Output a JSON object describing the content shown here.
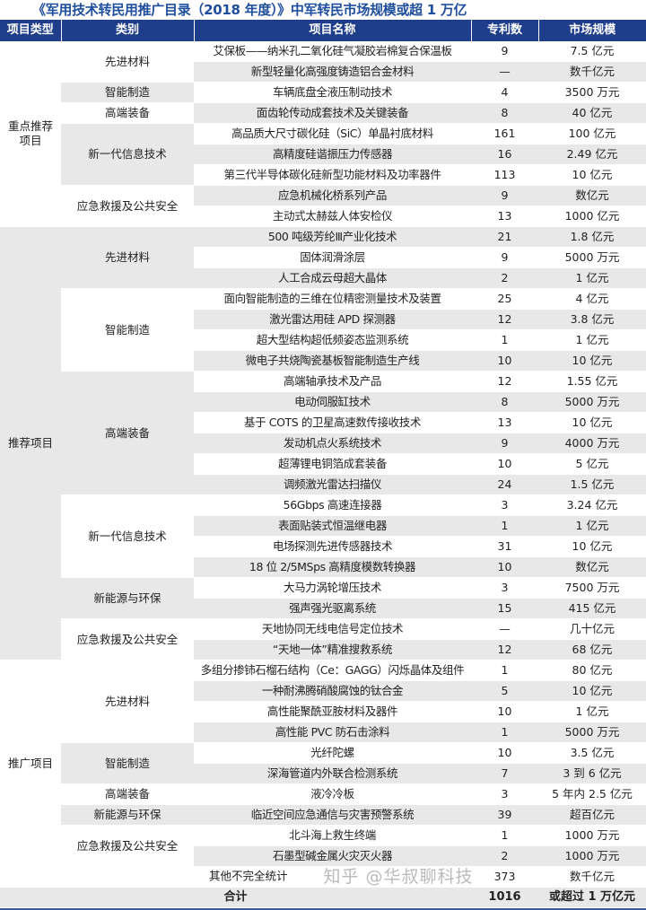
{
  "title": "《军用技术转民用推广目录（2018 年度）》中军转民市场规模或超 1 万亿",
  "headers": [
    "项目类型",
    "类别",
    "项目名称",
    "专利数",
    "市场规模"
  ],
  "sections": [
    {
      "type": "重点推荐项目",
      "groups": [
        {
          "category": "先进材料",
          "items": [
            {
              "name": "艾保板——纳米孔二氧化硅气凝胶岩棉复合保温板",
              "patents": "9",
              "market": "7.5 亿元"
            },
            {
              "name": "新型轻量化高强度铸造铝合金材料",
              "patents": "—",
              "market": "数千亿元"
            }
          ]
        },
        {
          "category": "智能制造",
          "items": [
            {
              "name": "车辆底盘全液压制动技术",
              "patents": "4",
              "market": "3500 万元"
            }
          ]
        },
        {
          "category": "高端装备",
          "items": [
            {
              "name": "面齿轮传动成套技术及关键装备",
              "patents": "8",
              "market": "40 亿元"
            }
          ]
        },
        {
          "category": "新一代信息技术",
          "items": [
            {
              "name": "高品质大尺寸碳化硅（SiC）单晶衬底材料",
              "patents": "161",
              "market": "100 亿元"
            },
            {
              "name": "高精度硅谐振压力传感器",
              "patents": "16",
              "market": "2.49 亿元"
            },
            {
              "name": "第三代半导体碳化硅新型功能材料及功率器件",
              "patents": "113",
              "market": "10 亿元"
            }
          ]
        },
        {
          "category": "应急救援及公共安全",
          "items": [
            {
              "name": "应急机械化桥系列产品",
              "patents": "9",
              "market": "数亿元"
            },
            {
              "name": "主动式太赫兹人体安检仪",
              "patents": "13",
              "market": "1000 亿元"
            }
          ]
        }
      ]
    },
    {
      "type": "推荐项目",
      "groups": [
        {
          "category": "先进材料",
          "items": [
            {
              "name": "500 吨级芳纶Ⅲ产业化技术",
              "patents": "21",
              "market": "1.8 亿元"
            },
            {
              "name": "固体润滑涂层",
              "patents": "9",
              "market": "5000 万元"
            },
            {
              "name": "人工合成云母超大晶体",
              "patents": "2",
              "market": "1 亿元"
            }
          ]
        },
        {
          "category": "智能制造",
          "items": [
            {
              "name": "面向智能制造的三维在位精密测量技术及装置",
              "patents": "25",
              "market": "4 亿元"
            },
            {
              "name": "激光雷达用硅 APD 探测器",
              "patents": "12",
              "market": "3.8 亿元"
            },
            {
              "name": "超大型结构超低频姿态监测系统",
              "patents": "1",
              "market": "1 亿元"
            },
            {
              "name": "微电子共烧陶瓷基板智能制造生产线",
              "patents": "10",
              "market": "10 亿元"
            }
          ]
        },
        {
          "category": "高端装备",
          "items": [
            {
              "name": "高端轴承技术及产品",
              "patents": "12",
              "market": "1.55 亿元"
            },
            {
              "name": "电动伺服缸技术",
              "patents": "8",
              "market": "5000 万元"
            },
            {
              "name": "基于 COTS 的卫星高速数传接收技术",
              "patents": "13",
              "market": "10 亿元"
            },
            {
              "name": "发动机点火系统技术",
              "patents": "9",
              "market": "4000 万元"
            },
            {
              "name": "超薄锂电铜箔成套装备",
              "patents": "10",
              "market": "5 亿元"
            },
            {
              "name": "调频激光雷达扫描仪",
              "patents": "24",
              "market": "1.5 亿元"
            }
          ]
        },
        {
          "category": "新一代信息技术",
          "items": [
            {
              "name": "56Gbps 高速连接器",
              "patents": "3",
              "market": "3.24 亿元"
            },
            {
              "name": "表面贴装式恒温继电器",
              "patents": "1",
              "market": "1 亿元"
            },
            {
              "name": "电场探测先进传感器技术",
              "patents": "31",
              "market": "10 亿元"
            },
            {
              "name": "18 位 2/5MSps 高精度模数转换器",
              "patents": "10",
              "market": "数亿元"
            }
          ]
        },
        {
          "category": "新能源与环保",
          "items": [
            {
              "name": "大马力涡轮增压技术",
              "patents": "3",
              "market": "7500 万元"
            },
            {
              "name": "强声强光驱离系统",
              "patents": "15",
              "market": "415 亿元"
            }
          ]
        },
        {
          "category": "应急救援及公共安全",
          "items": [
            {
              "name": "天地协同无线电信号定位技术",
              "patents": "—",
              "market": "几十亿元"
            },
            {
              "name": "“天地一体”精准搜救系统",
              "patents": "12",
              "market": "68 亿元"
            }
          ]
        }
      ]
    },
    {
      "type": "推广项目",
      "groups": [
        {
          "category": "先进材料",
          "items": [
            {
              "name": "多组分掺铈石榴石结构（Ce：GAGG）闪烁晶体及组件",
              "patents": "1",
              "market": "80 亿元"
            },
            {
              "name": "一种耐沸腾硝酸腐蚀的钛合金",
              "patents": "5",
              "market": "10 亿元"
            },
            {
              "name": "高性能聚酰亚胺材料及器件",
              "patents": "10",
              "market": "1 亿元"
            },
            {
              "name": "高性能 PVC 防石击涂料",
              "patents": "1",
              "market": "5000 万元"
            }
          ]
        },
        {
          "category": "智能制造",
          "items": [
            {
              "name": "光纤陀螺",
              "patents": "10",
              "market": "3.5 亿元"
            },
            {
              "name": "深海管道内外联合检测系统",
              "patents": "7",
              "market": "3 到 6 亿元"
            }
          ]
        },
        {
          "category": "高端装备",
          "items": [
            {
              "name": "液冷冷板",
              "patents": "3",
              "market": "5 年内 2.5 亿元"
            }
          ]
        },
        {
          "category": "新能源与环保",
          "items": [
            {
              "name": "临近空间应急通信与灾害预警系统",
              "patents": "39",
              "market": "超百亿元"
            }
          ]
        },
        {
          "category": "应急救援及公共安全",
          "items": [
            {
              "name": "北斗海上救生终端",
              "patents": "1",
              "market": "1000 万元"
            },
            {
              "name": "石墨型碱金属火灾灭火器",
              "patents": "2",
              "market": "1000 万元"
            }
          ]
        }
      ]
    }
  ],
  "other": {
    "label": "其他不完全统计",
    "patents": "373",
    "market": "数千亿元"
  },
  "total": {
    "label": "合计",
    "patents": "1016",
    "market": "或超过 1 万亿元"
  },
  "watermark": "知乎 @华叔聊科技",
  "colors": {
    "header_bg": "#1e3d8a",
    "title": "#1f4e9c",
    "stripe": "#e8e8e8"
  }
}
